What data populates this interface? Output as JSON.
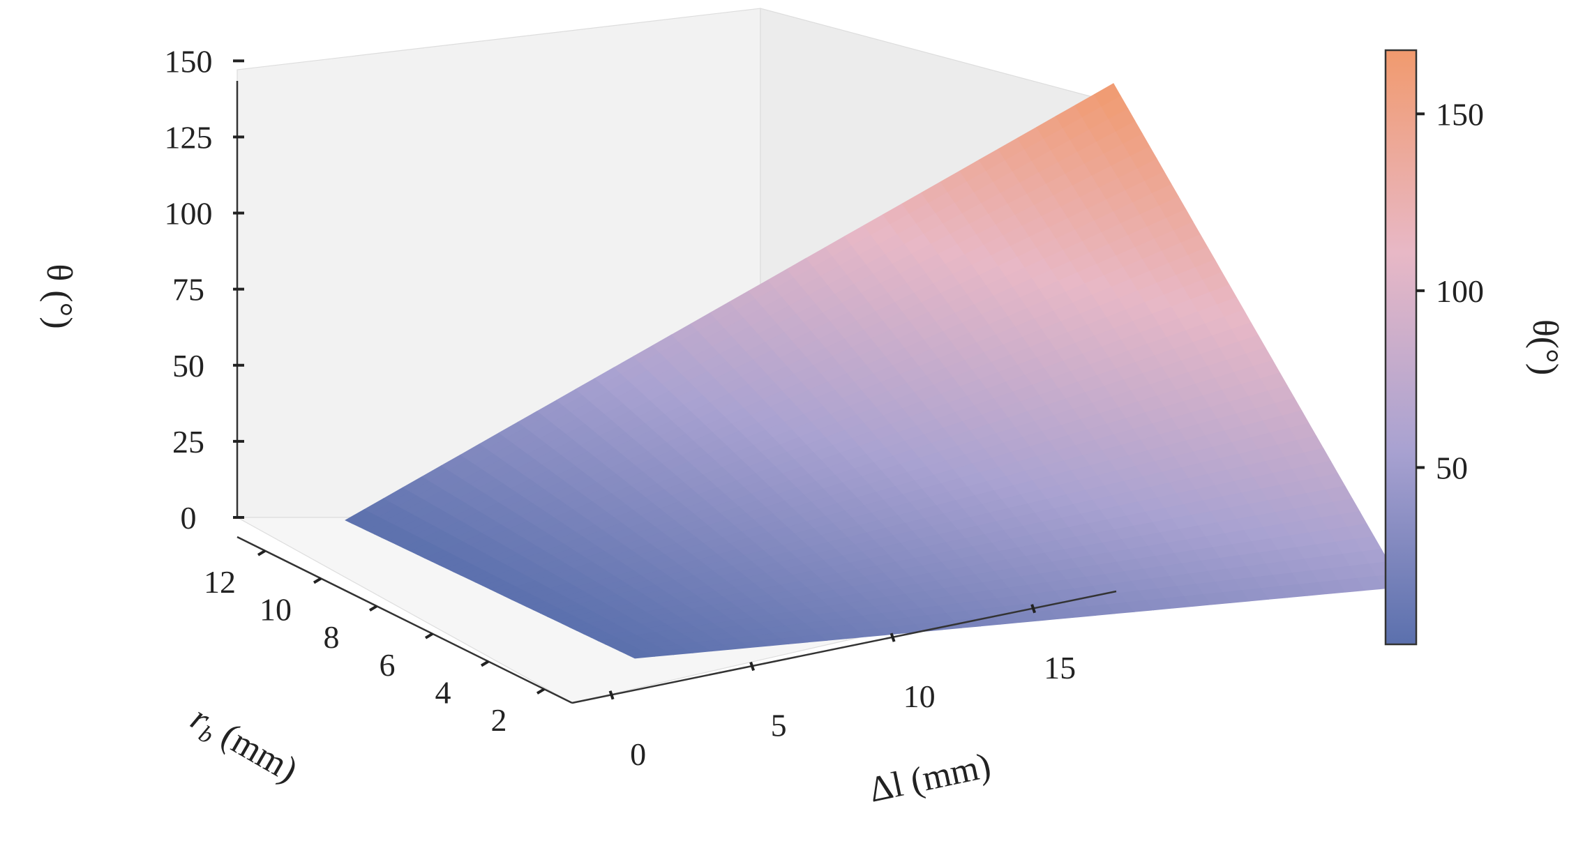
{
  "chart_data": {
    "type": "surface",
    "title": "",
    "x_axis": {
      "label": "Δl (mm)",
      "range": [
        0,
        18
      ],
      "ticks": [
        0,
        5,
        10,
        15
      ]
    },
    "y_axis": {
      "label": "r",
      "label_subscript": "b",
      "label_unit": " (mm)",
      "range": [
        1,
        13
      ],
      "ticks": [
        2,
        4,
        6,
        8,
        10,
        12
      ]
    },
    "z_axis": {
      "label": "θ (°)",
      "range": [
        0,
        170
      ],
      "ticks": [
        0,
        25,
        50,
        75,
        100,
        125,
        150
      ]
    },
    "surface_corners": [
      {
        "x": 0,
        "y": 1,
        "z": 0
      },
      {
        "x": 0,
        "y": 13,
        "z": 0
      },
      {
        "x": 18,
        "y": 1,
        "z": 48
      },
      {
        "x": 18,
        "y": 13,
        "z": 168
      }
    ],
    "colorbar": {
      "label": "θ(°)",
      "range": [
        0,
        168
      ],
      "ticks": [
        50,
        100,
        150
      ],
      "colors": [
        "#5b70ad",
        "#a9a2d1",
        "#e8b8c6",
        "#f19a6e"
      ]
    }
  }
}
